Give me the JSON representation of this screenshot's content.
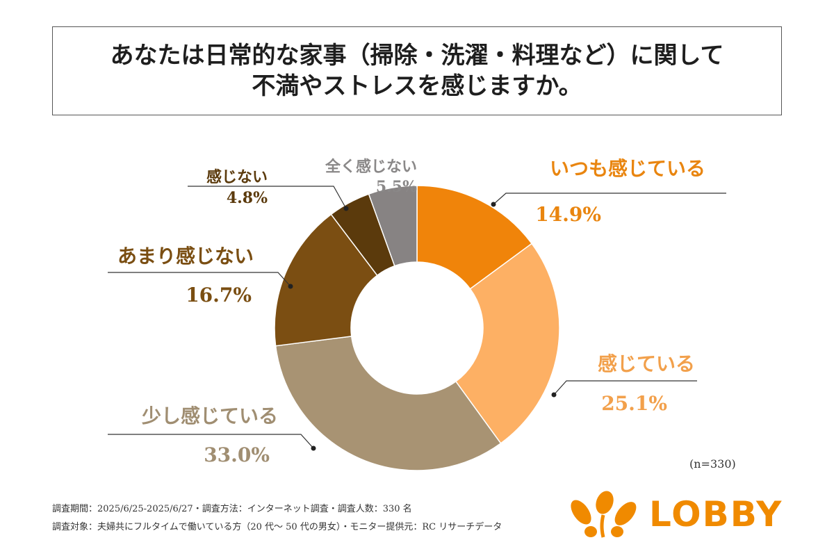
{
  "title": {
    "line1": "あなたは日常的な家事（掃除・洗濯・料理など）に関して",
    "line2": "不満やストレスを感じますか。"
  },
  "chart_data": {
    "type": "pie",
    "subtype": "donut",
    "categories": [
      "いつも感じている",
      "感じている",
      "少し感じている",
      "あまり感じない",
      "感じない",
      "全く感じない"
    ],
    "values": [
      14.9,
      25.1,
      33.0,
      16.7,
      4.8,
      5.5
    ],
    "labels": [
      "14.9%",
      "25.1%",
      "33.0%",
      "16.7%",
      "4.8%",
      "5.5%"
    ],
    "colors": [
      "#F0840A",
      "#FDB064",
      "#A89373",
      "#7B4E12",
      "#5B3A0C",
      "#878383"
    ],
    "label_colors": [
      "#E9850F",
      "#F2A04B",
      "#A08E72",
      "#7A4E12",
      "#5B3A0C",
      "#8A8888"
    ],
    "start": "top",
    "direction": "clockwise"
  },
  "sample_note": "(n=330)",
  "footer": {
    "line1": "調査期間：2025/6/25-2025/6/27・調査方法：インターネット調査・調査人数：330 名",
    "line2": "調査対象：夫婦共にフルタイムで働いている方（20 代〜 50 代の男女）・モニター提供元：RC リサーチデータ"
  },
  "logo": {
    "text": "LOBBY",
    "color": "#F08A00"
  }
}
